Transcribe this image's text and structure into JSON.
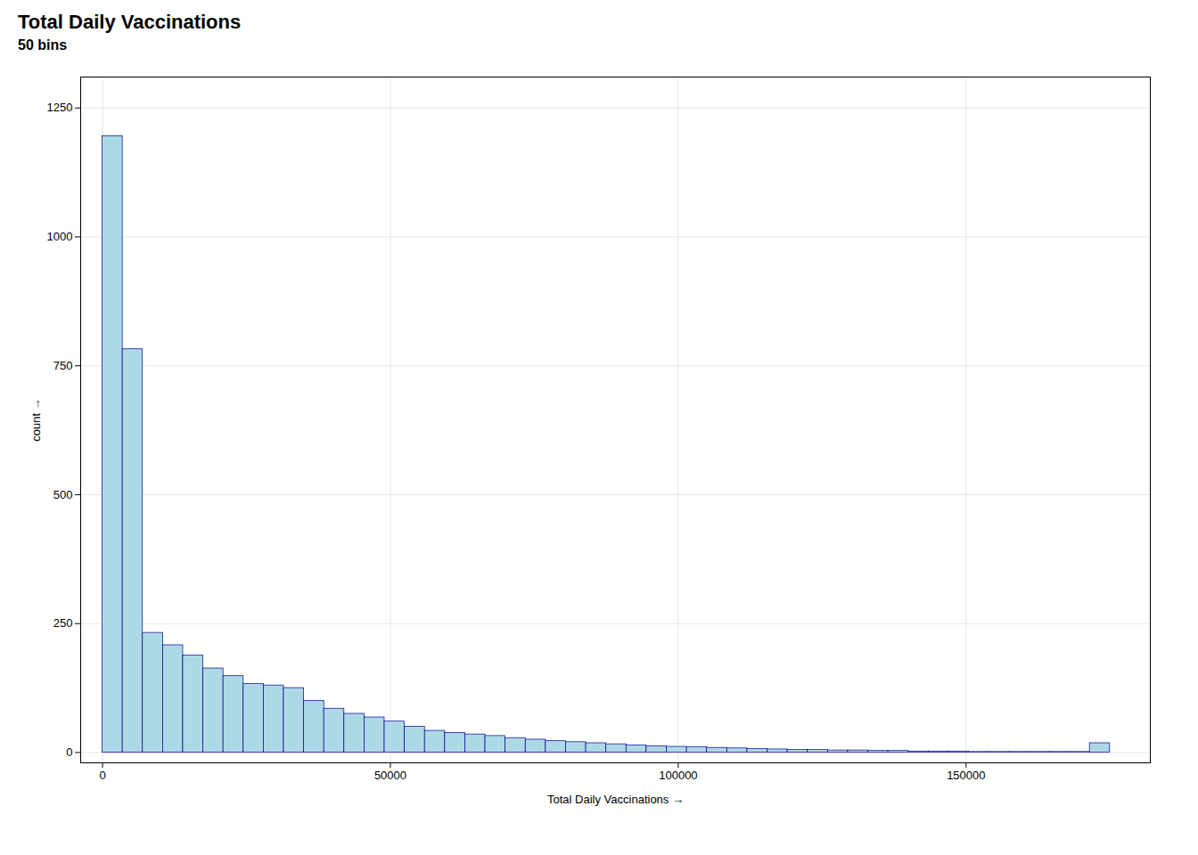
{
  "chart_data": {
    "type": "histogram",
    "title": "Total Daily Vaccinations",
    "subtitle": "50 bins",
    "xlabel": "Total Daily Vaccinations",
    "ylabel": "count",
    "bins": [
      0,
      3500,
      7000,
      10500,
      14000,
      17500,
      21000,
      24500,
      28000,
      31500,
      35000,
      38500,
      42000,
      45500,
      49000,
      52500,
      56000,
      59500,
      63000,
      66500,
      70000,
      73500,
      77000,
      80500,
      84000,
      87500,
      91000,
      94500,
      98000,
      101500,
      105000,
      108500,
      112000,
      115500,
      119000,
      122500,
      126000,
      129500,
      133000,
      136500,
      140000,
      143500,
      147000,
      150500,
      154000,
      157500,
      161000,
      164500,
      168000,
      171500,
      175000
    ],
    "values": [
      1195,
      782,
      232,
      208,
      188,
      163,
      148,
      133,
      130,
      125,
      100,
      85,
      75,
      68,
      60,
      50,
      42,
      38,
      35,
      32,
      28,
      25,
      22,
      20,
      18,
      16,
      14,
      12,
      11,
      10,
      9,
      8,
      7,
      6,
      5,
      5,
      4,
      4,
      3,
      3,
      2,
      2,
      2,
      1,
      1,
      1,
      1,
      1,
      1,
      18
    ],
    "color": "#ADD8E6",
    "xlim": [
      -3800,
      182000
    ],
    "ylim": [
      -20,
      1310
    ],
    "xticks": [
      0,
      50000,
      100000,
      150000
    ],
    "yticks": [
      0,
      250,
      500,
      750,
      1000,
      1250
    ],
    "grid": true
  }
}
